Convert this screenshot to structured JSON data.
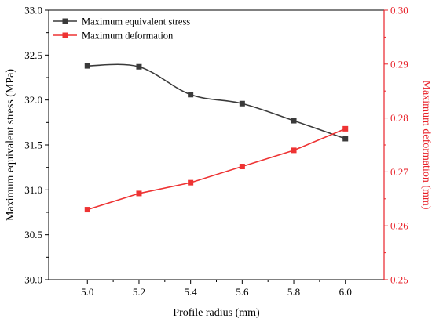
{
  "chart_data": {
    "type": "line",
    "x": [
      5.0,
      5.2,
      5.4,
      5.6,
      5.8,
      6.0
    ],
    "x_ticks": [
      "5.0",
      "5.2",
      "5.4",
      "5.6",
      "5.8",
      "6.0"
    ],
    "xlabel": "Profile radius (mm)",
    "xlim": [
      4.85,
      6.15
    ],
    "y_left": {
      "label": "Maximum equivalent stress (MPa)",
      "lim": [
        30.0,
        33.0
      ],
      "ticks": [
        "30.0",
        "30.5",
        "31.0",
        "31.5",
        "32.0",
        "32.5",
        "33.0"
      ],
      "color": "#000000"
    },
    "y_right": {
      "label": "Maximum deformation (mm)",
      "lim": [
        0.25,
        0.3
      ],
      "ticks": [
        "0.25",
        "0.26",
        "0.27",
        "0.28",
        "0.29",
        "0.30"
      ],
      "color": "#e8222a"
    },
    "series": [
      {
        "name": "Maximum equivalent stress",
        "axis": "left",
        "color": "#3a3a3a",
        "marker": "square",
        "smooth": true,
        "values": [
          32.38,
          32.37,
          32.06,
          31.96,
          31.77,
          31.57
        ]
      },
      {
        "name": "Maximum deformation",
        "axis": "right",
        "color": "#ee3333",
        "marker": "square",
        "smooth": false,
        "values": [
          0.263,
          0.266,
          0.268,
          0.271,
          0.274,
          0.278
        ]
      }
    ],
    "legend_position": "top-left",
    "grid": false
  }
}
